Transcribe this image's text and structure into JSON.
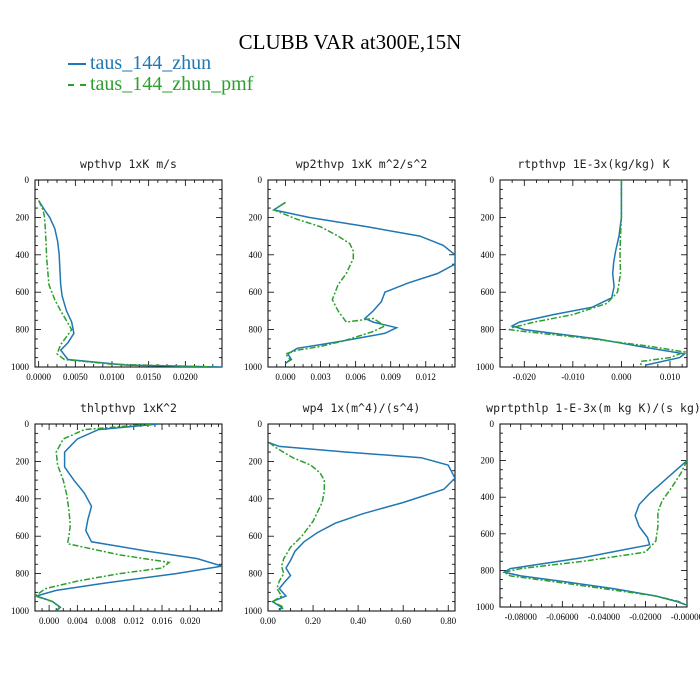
{
  "figure": {
    "title": "CLUBB VAR at300E,15N"
  },
  "legend": [
    {
      "label": "taus_144_zhun",
      "color": "#1f77b4",
      "dash": "solid"
    },
    {
      "label": "taus_144_zhun_pmf",
      "color": "#2ca02c",
      "dash": "dashdot"
    }
  ],
  "chart_data": [
    {
      "type": "line",
      "title": "wpthvp   1xK m/s",
      "xlim": [
        -0.0005,
        0.025
      ],
      "ylim": [
        0,
        1000
      ],
      "x_ticks": [
        "0.0000",
        "0.0050",
        "0.0100",
        "0.0150",
        "0.0200"
      ],
      "x_tick_values": [
        0,
        0.005,
        0.01,
        0.015,
        0.02
      ],
      "y_ticks": [
        "0",
        "200",
        "400",
        "600",
        "800",
        "1000"
      ],
      "y_tick_values": [
        0,
        200,
        400,
        600,
        800,
        1000
      ],
      "series": [
        {
          "name": "taus_144_zhun",
          "color": "#1f77b4",
          "x": [
            0,
            0.0008,
            0.0015,
            0.0022,
            0.0026,
            0.0028,
            0.0029,
            0.003,
            0.0032,
            0.0038,
            0.0045,
            0.0048,
            0.004,
            0.003,
            0.004,
            0.012,
            0.025
          ],
          "y": [
            110,
            160,
            200,
            260,
            330,
            400,
            480,
            560,
            620,
            700,
            760,
            820,
            870,
            910,
            960,
            990,
            1000
          ]
        },
        {
          "name": "taus_144_zhun_pmf",
          "color": "#2ca02c",
          "x": [
            0,
            0.0006,
            0.0008,
            0.0009,
            0.001,
            0.0011,
            0.0014,
            0.0022,
            0.003,
            0.0045,
            0.003,
            0.0025,
            0.0035,
            0.01,
            0.024
          ],
          "y": [
            110,
            160,
            200,
            260,
            330,
            420,
            560,
            640,
            700,
            800,
            880,
            930,
            960,
            985,
            1000
          ]
        }
      ]
    },
    {
      "type": "line",
      "title": "wp2thvp   1xK m^2/s^2",
      "xlim": [
        -0.0015,
        0.0145
      ],
      "ylim": [
        0,
        1000
      ],
      "x_ticks": [
        "0.000",
        "0.003",
        "0.006",
        "0.009",
        "0.012"
      ],
      "x_tick_values": [
        0,
        0.003,
        0.006,
        0.009,
        0.012
      ],
      "y_ticks": [
        "0",
        "200",
        "400",
        "600",
        "800",
        "1000"
      ],
      "y_tick_values": [
        0,
        200,
        400,
        600,
        800,
        1000
      ],
      "series": [
        {
          "name": "taus_144_zhun",
          "color": "#1f77b4",
          "x": [
            0,
            -0.001,
            0.002,
            0.007,
            0.0115,
            0.0135,
            0.0145,
            0.0145,
            0.013,
            0.0105,
            0.0085,
            0.0082,
            0.0075,
            0.0068,
            0.0075,
            0.0095,
            0.0085,
            0.005,
            0.003,
            0.001,
            0.0002,
            0.0005,
            0
          ],
          "y": [
            120,
            160,
            200,
            250,
            300,
            350,
            400,
            450,
            500,
            550,
            600,
            650,
            700,
            740,
            760,
            790,
            820,
            860,
            880,
            900,
            930,
            960,
            980
          ]
        },
        {
          "name": "taus_144_zhun_pmf",
          "color": "#2ca02c",
          "x": [
            0,
            -0.001,
            0.001,
            0.003,
            0.0045,
            0.0055,
            0.0058,
            0.0058,
            0.0052,
            0.0045,
            0.004,
            0.0045,
            0.0052,
            0.0075,
            0.0085,
            0.0075,
            0.005,
            0.003,
            0.001,
            0,
            0.0004,
            0
          ],
          "y": [
            120,
            160,
            210,
            250,
            300,
            340,
            380,
            420,
            500,
            560,
            640,
            700,
            760,
            740,
            780,
            810,
            860,
            890,
            910,
            930,
            960,
            980
          ]
        }
      ]
    },
    {
      "type": "line",
      "title": "rtpthvp   1E-3x(kg/kg) K",
      "xlim": [
        -0.025,
        0.0135
      ],
      "ylim": [
        0,
        1000
      ],
      "x_ticks": [
        "-0.020",
        "-0.010",
        "0.000",
        "0.010"
      ],
      "x_tick_values": [
        -0.02,
        -0.01,
        0,
        0.01
      ],
      "y_ticks": [
        "0",
        "200",
        "400",
        "600",
        "800",
        "1000"
      ],
      "y_tick_values": [
        0,
        200,
        400,
        600,
        800,
        1000
      ],
      "series": [
        {
          "name": "taus_144_zhun",
          "color": "#1f77b4",
          "x": [
            0,
            0,
            -0.0005,
            -0.0012,
            -0.0016,
            -0.0018,
            -0.0015,
            -0.002,
            -0.006,
            -0.014,
            -0.021,
            -0.0225,
            -0.02,
            -0.005,
            0.006,
            0.013,
            0.012,
            0.005
          ],
          "y": [
            0,
            200,
            300,
            380,
            440,
            500,
            570,
            630,
            680,
            720,
            760,
            780,
            800,
            850,
            900,
            930,
            950,
            990
          ]
        },
        {
          "name": "taus_144_zhun_pmf",
          "color": "#2ca02c",
          "x": [
            0,
            0,
            -0.0002,
            -0.0003,
            -0.0002,
            -0.0008,
            -0.003,
            -0.01,
            -0.018,
            -0.0225,
            -0.023,
            -0.02,
            -0.006,
            0.006,
            0.013,
            0.01,
            0.004,
            0.004
          ],
          "y": [
            0,
            200,
            300,
            400,
            500,
            600,
            660,
            720,
            760,
            790,
            800,
            810,
            850,
            890,
            920,
            950,
            970,
            990
          ]
        }
      ]
    },
    {
      "type": "line",
      "title": "thlpthvp   1xK^2",
      "xlim": [
        -0.002,
        0.0245
      ],
      "ylim": [
        0,
        1000
      ],
      "x_ticks": [
        "0.000",
        "0.004",
        "0.008",
        "0.012",
        "0.016",
        "0.020"
      ],
      "x_tick_values": [
        0,
        0.004,
        0.008,
        0.012,
        0.016,
        0.02
      ],
      "y_ticks": [
        "0",
        "200",
        "400",
        "600",
        "800",
        "1000"
      ],
      "y_tick_values": [
        0,
        200,
        400,
        600,
        800,
        1000
      ],
      "series": [
        {
          "name": "taus_144_zhun",
          "color": "#1f77b4",
          "x": [
            0.0155,
            0.007,
            0.004,
            0.0022,
            0.0022,
            0.0035,
            0.005,
            0.006,
            0.0055,
            0.0052,
            0.006,
            0.014,
            0.021,
            0.0245,
            0.018,
            0.008,
            0.001,
            -0.0018,
            0.0005,
            0.0016,
            0.001
          ],
          "y": [
            0,
            30,
            80,
            150,
            230,
            300,
            370,
            440,
            510,
            570,
            630,
            680,
            720,
            760,
            800,
            850,
            890,
            920,
            950,
            980,
            1000
          ]
        },
        {
          "name": "taus_144_zhun_pmf",
          "color": "#2ca02c",
          "x": [
            0.0145,
            0.005,
            0.002,
            0.001,
            0.0012,
            0.002,
            0.0025,
            0.0028,
            0.003,
            0.0028,
            0.0026,
            0.01,
            0.017,
            0.016,
            0.01,
            0.004,
            -0.0005,
            -0.002,
            0.0005,
            0.0015,
            0.001
          ],
          "y": [
            0,
            30,
            80,
            150,
            220,
            300,
            380,
            460,
            540,
            600,
            640,
            700,
            740,
            770,
            800,
            840,
            880,
            920,
            950,
            980,
            1000
          ]
        }
      ]
    },
    {
      "type": "line",
      "title": "wp4   1x(m^4)/(s^4)",
      "xlim": [
        0,
        0.83
      ],
      "ylim": [
        0,
        1000
      ],
      "x_ticks": [
        "0.00",
        "0.20",
        "0.40",
        "0.60",
        "0.80"
      ],
      "x_tick_values": [
        0,
        0.2,
        0.4,
        0.6,
        0.8
      ],
      "y_ticks": [
        "0",
        "200",
        "400",
        "600",
        "800",
        "1000"
      ],
      "y_tick_values": [
        0,
        200,
        400,
        600,
        800,
        1000
      ],
      "series": [
        {
          "name": "taus_144_zhun",
          "color": "#1f77b4",
          "x": [
            0.005,
            0.05,
            0.35,
            0.68,
            0.8,
            0.83,
            0.78,
            0.6,
            0.42,
            0.3,
            0.22,
            0.16,
            0.12,
            0.1,
            0.08,
            0.1,
            0.07,
            0.05,
            0.08,
            0.02,
            0.06,
            0.05
          ],
          "y": [
            100,
            120,
            150,
            180,
            220,
            290,
            350,
            420,
            480,
            530,
            580,
            630,
            680,
            730,
            770,
            810,
            850,
            880,
            920,
            950,
            980,
            1000
          ]
        },
        {
          "name": "taus_144_zhun_pmf",
          "color": "#2ca02c",
          "x": [
            0.005,
            0.04,
            0.11,
            0.19,
            0.23,
            0.25,
            0.25,
            0.24,
            0.2,
            0.15,
            0.1,
            0.07,
            0.06,
            0.07,
            0.05,
            0.04,
            0.06,
            0.02,
            0.07,
            0.05
          ],
          "y": [
            100,
            130,
            180,
            220,
            260,
            300,
            360,
            420,
            520,
            600,
            660,
            720,
            760,
            800,
            840,
            880,
            920,
            950,
            980,
            1000
          ]
        }
      ]
    },
    {
      "type": "line",
      "title": "wprtpthlp   1-E-3x(m kg K)/(s kg)",
      "xlim": [
        -0.09,
        0.0
      ],
      "ylim": [
        0,
        1000
      ],
      "x_ticks": [
        "-0.08000",
        "-0.06000",
        "-0.04000",
        "-0.02000",
        "-0.00000"
      ],
      "x_tick_values": [
        -0.08,
        -0.06,
        -0.04,
        -0.02,
        0
      ],
      "y_ticks": [
        "0",
        "200",
        "400",
        "600",
        "800",
        "1000"
      ],
      "y_tick_values": [
        0,
        200,
        400,
        600,
        800,
        1000
      ],
      "series": [
        {
          "name": "taus_144_zhun",
          "color": "#1f77b4",
          "x": [
            0,
            -0.006,
            -0.012,
            -0.018,
            -0.023,
            -0.025,
            -0.023,
            -0.019,
            -0.018,
            -0.05,
            -0.085,
            -0.088,
            -0.08,
            -0.06,
            -0.035,
            -0.015,
            -0.005,
            0
          ],
          "y": [
            200,
            260,
            320,
            380,
            440,
            500,
            560,
            620,
            660,
            730,
            790,
            810,
            830,
            860,
            900,
            940,
            970,
            990
          ]
        },
        {
          "name": "taus_144_zhun_pmf",
          "color": "#2ca02c",
          "x": [
            0,
            -0.003,
            -0.007,
            -0.012,
            -0.014,
            -0.014,
            -0.015,
            -0.02,
            -0.05,
            -0.08,
            -0.088,
            -0.085,
            -0.065,
            -0.04,
            -0.015,
            -0.004,
            0
          ],
          "y": [
            200,
            270,
            340,
            420,
            480,
            560,
            640,
            700,
            750,
            790,
            810,
            830,
            860,
            900,
            940,
            970,
            990
          ]
        }
      ]
    }
  ]
}
